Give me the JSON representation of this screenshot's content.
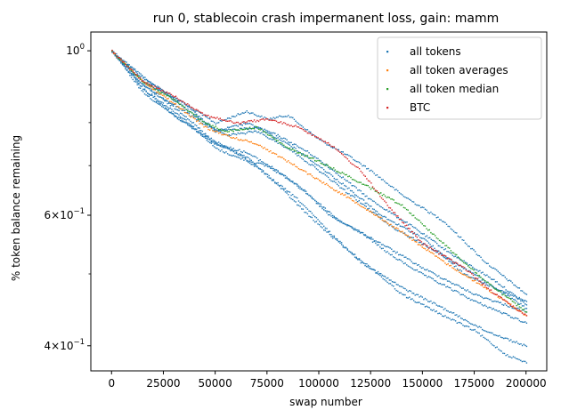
{
  "chart_data": {
    "type": "scatter",
    "title": "run 0, stablecoin crash impermanent loss, gain: mamm",
    "xlabel": "swap number",
    "ylabel": "% token balance remaining",
    "yscale": "log",
    "xlim": [
      -10000,
      210000
    ],
    "ylim": [
      0.37,
      1.06
    ],
    "x_ticks": [
      0,
      25000,
      50000,
      75000,
      100000,
      125000,
      150000,
      175000,
      200000
    ],
    "x_tick_labels": [
      "0",
      "25000",
      "50000",
      "75000",
      "100000",
      "125000",
      "150000",
      "175000",
      "200000"
    ],
    "y_ticks": [
      1.0,
      0.6,
      0.4
    ],
    "y_tick_labels": [
      {
        "base": "10",
        "exp": "0",
        "mant": ""
      },
      {
        "base": "10",
        "exp": "−1",
        "mant": "6×"
      },
      {
        "base": "10",
        "exp": "−1",
        "mant": "4×"
      }
    ],
    "y_minor_ticks": [
      0.5,
      0.7,
      0.8,
      0.9
    ],
    "legend_position": "top-right",
    "series": [
      {
        "name": "all tokens",
        "color": "#1f77b4",
        "lines": [
          {
            "x": [
              0,
              15000,
              35000,
              50000,
              65000,
              75000,
              85000,
              100000,
              115000,
              125000,
              140000,
              160000,
              180000,
              200000
            ],
            "y": [
              1.0,
              0.92,
              0.85,
              0.8,
              0.83,
              0.81,
              0.82,
              0.76,
              0.72,
              0.69,
              0.64,
              0.59,
              0.52,
              0.47
            ]
          },
          {
            "x": [
              0,
              15000,
              35000,
              50000,
              65000,
              80000,
              95000,
              110000,
              125000,
              145000,
              165000,
              185000,
              200000
            ],
            "y": [
              1.0,
              0.9,
              0.83,
              0.78,
              0.8,
              0.77,
              0.73,
              0.68,
              0.63,
              0.58,
              0.53,
              0.49,
              0.455
            ]
          },
          {
            "x": [
              0,
              15000,
              35000,
              50000,
              60000,
              75000,
              90000,
              105000,
              120000,
              135000,
              150000,
              175000,
              200000
            ],
            "y": [
              1.0,
              0.89,
              0.81,
              0.74,
              0.72,
              0.7,
              0.66,
              0.6,
              0.57,
              0.53,
              0.5,
              0.46,
              0.43
            ]
          },
          {
            "x": [
              0,
              15000,
              35000,
              50000,
              65000,
              80000,
              95000,
              110000,
              130000,
              150000,
              175000,
              200000
            ],
            "y": [
              1.0,
              0.9,
              0.82,
              0.75,
              0.73,
              0.69,
              0.64,
              0.59,
              0.55,
              0.51,
              0.47,
              0.445
            ]
          },
          {
            "x": [
              0,
              15000,
              30000,
              45000,
              60000,
              75000,
              90000,
              105000,
              120000,
              140000,
              160000,
              180000,
              200000
            ],
            "y": [
              1.0,
              0.89,
              0.82,
              0.77,
              0.73,
              0.68,
              0.63,
              0.57,
              0.52,
              0.48,
              0.45,
              0.42,
              0.4
            ]
          },
          {
            "x": [
              0,
              15000,
              35000,
              50000,
              65000,
              80000,
              95000,
              110000,
              125000,
              140000,
              160000,
              175000,
              190000,
              200000
            ],
            "y": [
              1.0,
              0.88,
              0.8,
              0.75,
              0.72,
              0.66,
              0.6,
              0.55,
              0.51,
              0.47,
              0.44,
              0.42,
              0.39,
              0.38
            ]
          },
          {
            "x": [
              0,
              15000,
              35000,
              50000,
              70000,
              85000,
              100000,
              115000,
              130000,
              150000,
              170000,
              200000
            ],
            "y": [
              1.0,
              0.91,
              0.85,
              0.78,
              0.79,
              0.75,
              0.7,
              0.65,
              0.6,
              0.56,
              0.5,
              0.46
            ]
          },
          {
            "x": [
              0,
              20000,
              40000,
              55000,
              70000,
              85000,
              100000,
              115000,
              135000,
              155000,
              175000,
              200000
            ],
            "y": [
              1.0,
              0.9,
              0.82,
              0.77,
              0.78,
              0.74,
              0.69,
              0.64,
              0.58,
              0.54,
              0.5,
              0.45
            ]
          }
        ]
      },
      {
        "name": "all token averages",
        "color": "#ff7f0e",
        "lines": [
          {
            "x": [
              0,
              15000,
              30000,
              45000,
              55000,
              70000,
              85000,
              100000,
              120000,
              140000,
              160000,
              180000,
              200000
            ],
            "y": [
              1.0,
              0.91,
              0.85,
              0.79,
              0.77,
              0.75,
              0.71,
              0.67,
              0.62,
              0.57,
              0.52,
              0.48,
              0.44
            ]
          }
        ]
      },
      {
        "name": "all token median",
        "color": "#2ca02c",
        "lines": [
          {
            "x": [
              0,
              15000,
              30000,
              45000,
              55000,
              70000,
              85000,
              100000,
              120000,
              140000,
              160000,
              180000,
              200000
            ],
            "y": [
              1.0,
              0.91,
              0.86,
              0.8,
              0.78,
              0.79,
              0.74,
              0.71,
              0.665,
              0.62,
              0.55,
              0.49,
              0.445
            ]
          }
        ]
      },
      {
        "name": "BTC",
        "color": "#d62728",
        "lines": [
          {
            "x": [
              0,
              15000,
              30000,
              45000,
              60000,
              75000,
              90000,
              105000,
              120000,
              135000,
              150000,
              170000,
              185000,
              200000
            ],
            "y": [
              1.0,
              0.91,
              0.87,
              0.82,
              0.8,
              0.81,
              0.79,
              0.75,
              0.69,
              0.61,
              0.55,
              0.51,
              0.47,
              0.44
            ]
          }
        ]
      }
    ]
  }
}
